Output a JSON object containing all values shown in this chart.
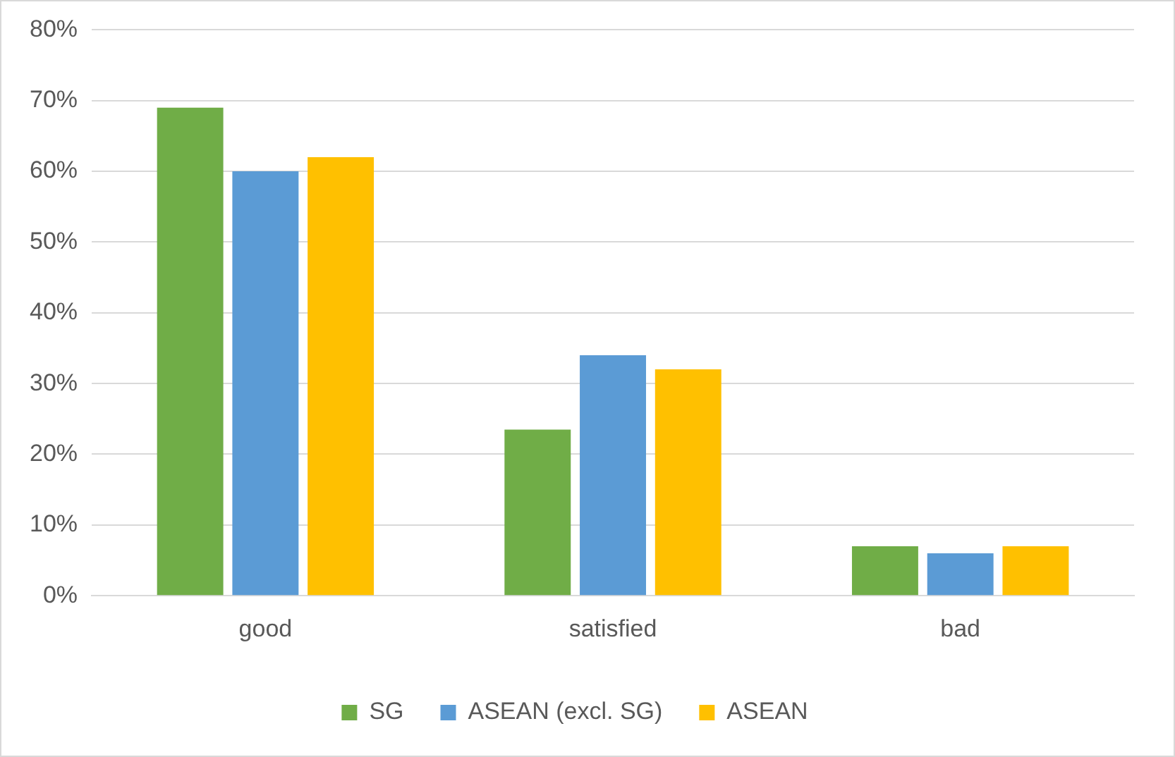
{
  "chart_data": {
    "type": "bar",
    "categories": [
      "good",
      "satisfied",
      "bad"
    ],
    "series": [
      {
        "name": "SG",
        "color": "#70ad47",
        "values": [
          69,
          23.5,
          7
        ]
      },
      {
        "name": "ASEAN (excl. SG)",
        "color": "#5b9bd5",
        "values": [
          60,
          34,
          6
        ]
      },
      {
        "name": "ASEAN",
        "color": "#ffc000",
        "values": [
          62,
          32,
          7
        ]
      }
    ],
    "ylim": [
      0,
      80
    ],
    "yticks": [
      {
        "value": 0,
        "label": "0%"
      },
      {
        "value": 10,
        "label": "10%"
      },
      {
        "value": 20,
        "label": "20%"
      },
      {
        "value": 30,
        "label": "30%"
      },
      {
        "value": 40,
        "label": "40%"
      },
      {
        "value": 50,
        "label": "50%"
      },
      {
        "value": 60,
        "label": "60%"
      },
      {
        "value": 70,
        "label": "70%"
      },
      {
        "value": 80,
        "label": "80%"
      }
    ],
    "grid": "y",
    "legend": "bottom"
  }
}
